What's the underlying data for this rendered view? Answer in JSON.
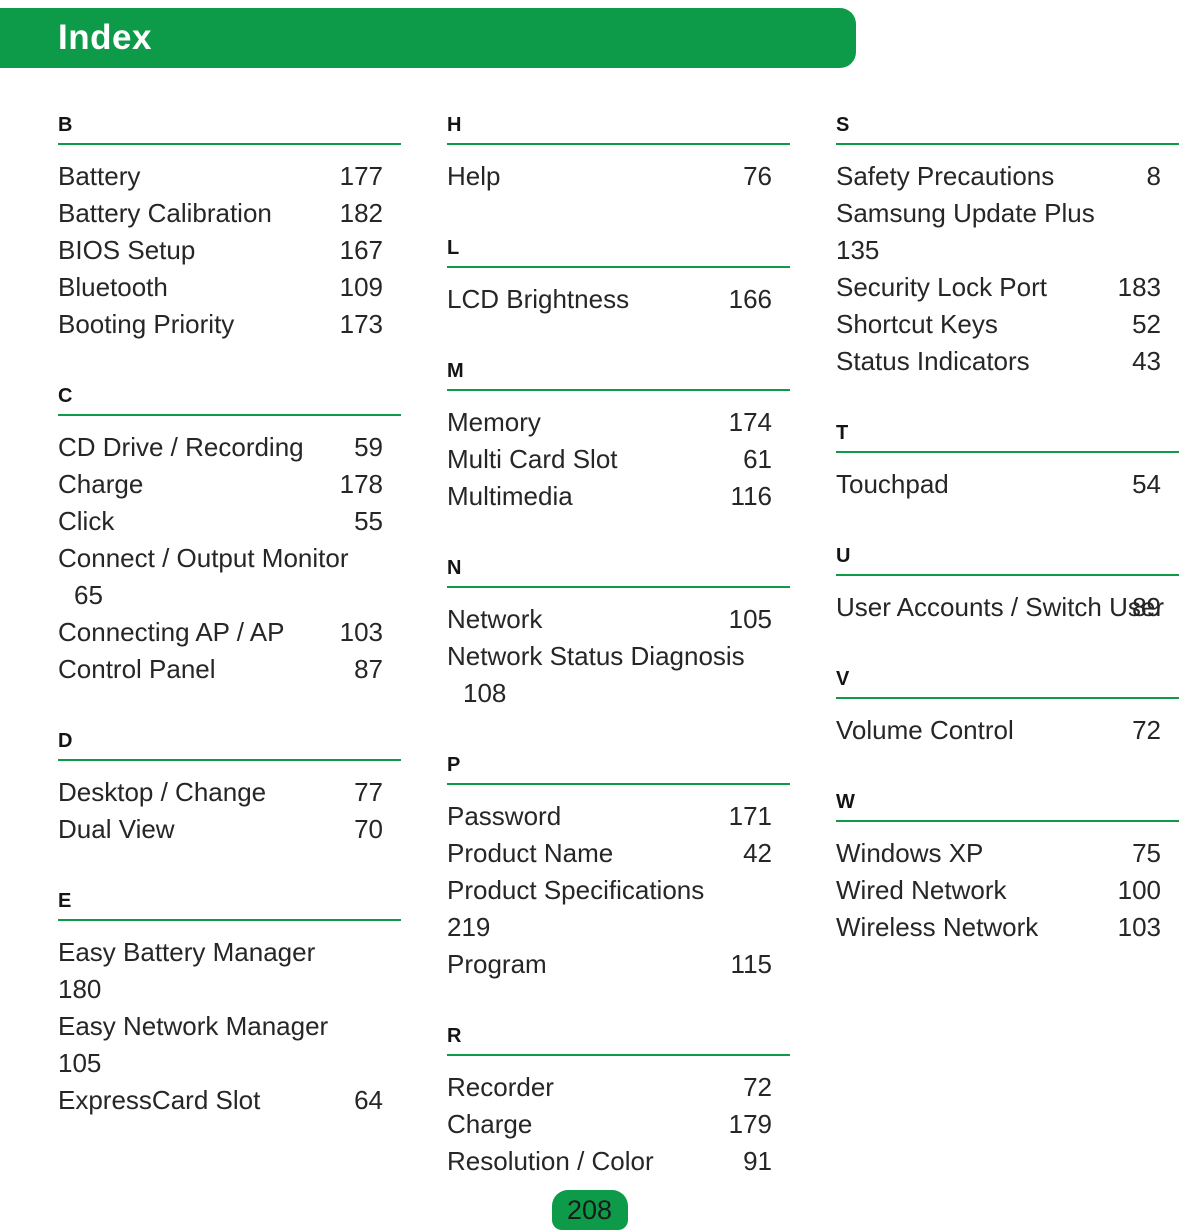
{
  "meta": {
    "title": "Index",
    "page_number": "208",
    "accent_color": "#0d9b49"
  },
  "columns": [
    {
      "sections": [
        {
          "letter": "B",
          "entries": [
            {
              "label": "Battery",
              "page": "177"
            },
            {
              "label": "Battery Calibration",
              "page": "182"
            },
            {
              "label": "BIOS Setup",
              "page": "167"
            },
            {
              "label": "Bluetooth",
              "page": "109"
            },
            {
              "label": "Booting Priority",
              "page": "173"
            }
          ]
        },
        {
          "letter": "C",
          "entries": [
            {
              "label": "CD Drive / Recording",
              "page": "59"
            },
            {
              "label": "Charge",
              "page": "178"
            },
            {
              "label": "Click",
              "page": "55"
            },
            {
              "label": "Connect / Output Monitor",
              "page": "65",
              "layout": "below-indent"
            },
            {
              "label": "Connecting AP / AP",
              "page": "103"
            },
            {
              "label": "Control Panel",
              "page": "87"
            }
          ]
        },
        {
          "letter": "D",
          "entries": [
            {
              "label": "Desktop / Change",
              "page": "77"
            },
            {
              "label": "Dual View",
              "page": "70"
            }
          ]
        },
        {
          "letter": "E",
          "entries": [
            {
              "label": "Easy Battery Manager",
              "page": "180",
              "layout": "below"
            },
            {
              "label": "Easy Network Manager",
              "page": "105",
              "layout": "below"
            },
            {
              "label": "ExpressCard Slot",
              "page": "64"
            }
          ]
        }
      ]
    },
    {
      "sections": [
        {
          "letter": "H",
          "entries": [
            {
              "label": "Help",
              "page": "76"
            }
          ]
        },
        {
          "letter": "L",
          "entries": [
            {
              "label": "LCD Brightness",
              "page": "166"
            }
          ]
        },
        {
          "letter": "M",
          "entries": [
            {
              "label": "Memory",
              "page": "174"
            },
            {
              "label": "Multi Card Slot",
              "page": "61"
            },
            {
              "label": "Multimedia",
              "page": "116"
            }
          ]
        },
        {
          "letter": "N",
          "entries": [
            {
              "label": "Network",
              "page": "105"
            },
            {
              "label": "Network Status Diagnosis",
              "page": "108",
              "layout": "below-indent"
            }
          ]
        },
        {
          "letter": "P",
          "entries": [
            {
              "label": "Password",
              "page": "171"
            },
            {
              "label": "Product Name",
              "page": "42"
            },
            {
              "label": "Product Specifications",
              "page": "219",
              "layout": "below"
            },
            {
              "label": "Program",
              "page": "115"
            }
          ]
        },
        {
          "letter": "R",
          "entries": [
            {
              "label": "Recorder",
              "page": "72"
            },
            {
              "label": "Charge",
              "page": "179"
            },
            {
              "label": "Resolution / Color",
              "page": "91"
            }
          ]
        }
      ]
    },
    {
      "sections": [
        {
          "letter": "S",
          "entries": [
            {
              "label": "Safety Precautions",
              "page": "8"
            },
            {
              "label": "Samsung Update Plus",
              "page": "135",
              "layout": "below"
            },
            {
              "label": "Security Lock Port",
              "page": "183"
            },
            {
              "label": "Shortcut Keys",
              "page": "52"
            },
            {
              "label": "Status Indicators",
              "page": "43"
            }
          ]
        },
        {
          "letter": "T",
          "entries": [
            {
              "label": "Touchpad",
              "page": "54"
            }
          ]
        },
        {
          "letter": "U",
          "entries": [
            {
              "label": "User Accounts / Switch User",
              "page": "89",
              "layout": "justify-right"
            }
          ]
        },
        {
          "letter": "V",
          "entries": [
            {
              "label": "Volume Control",
              "page": "72"
            }
          ]
        },
        {
          "letter": "W",
          "entries": [
            {
              "label": "Windows XP",
              "page": "75"
            },
            {
              "label": "Wired Network",
              "page": "100"
            },
            {
              "label": "Wireless Network",
              "page": "103"
            }
          ]
        }
      ]
    }
  ]
}
